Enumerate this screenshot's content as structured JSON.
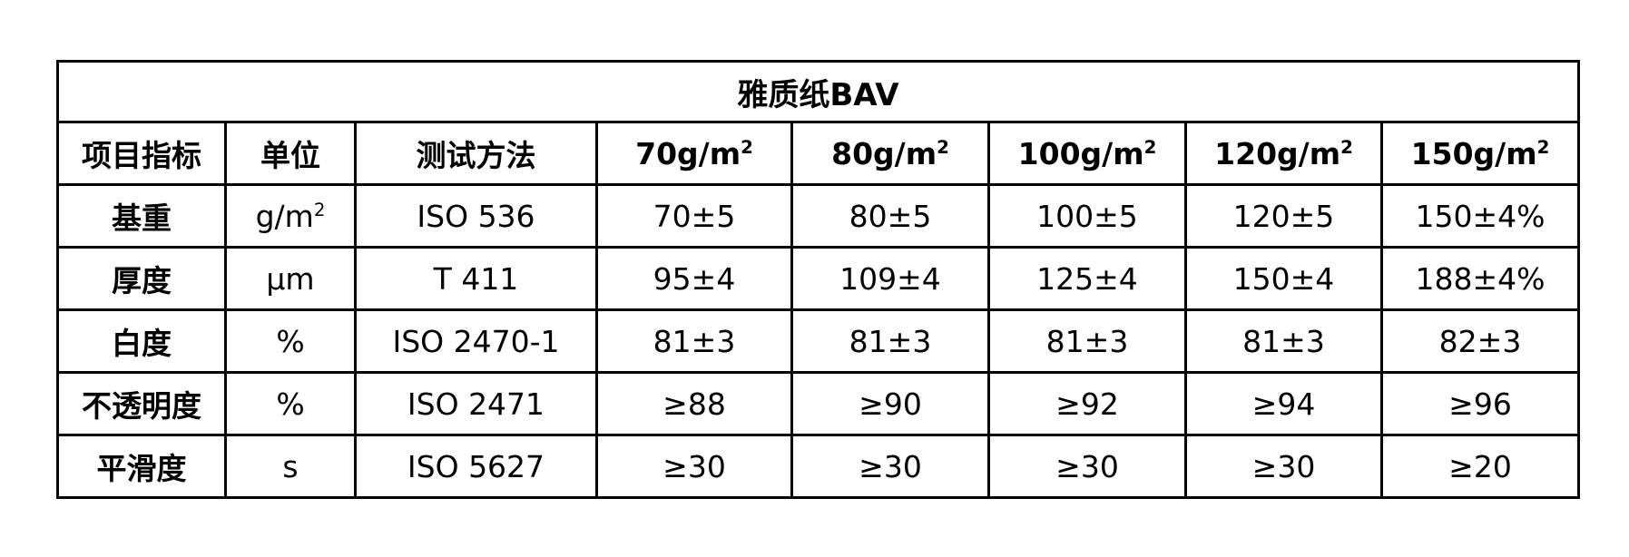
{
  "title": "雅质纸BAV",
  "headers": [
    "项目指标",
    "单位",
    "测试方法",
    "70g/m",
    "80g/m",
    "100g/m",
    "120g/m",
    "150g/m"
  ],
  "header_sup": "2",
  "rows": [
    {
      "item": "基重",
      "unit": "g/m",
      "unit_sup": "2",
      "method": "ISO 536",
      "values": [
        "70±5",
        "80±5",
        "100±5",
        "120±5",
        "150±4%"
      ]
    },
    {
      "item": "厚度",
      "unit": "μm",
      "unit_sup": "",
      "method": "T 411",
      "values": [
        "95±4",
        "109±4",
        "125±4",
        "150±4",
        "188±4%"
      ]
    },
    {
      "item": "白度",
      "unit": "%",
      "unit_sup": "",
      "method": "ISO 2470-1",
      "values": [
        "81±3",
        "81±3",
        "81±3",
        "81±3",
        "82±3"
      ]
    },
    {
      "item": "不透明度",
      "unit": "%",
      "unit_sup": "",
      "method": "ISO 2471",
      "values": [
        "≥88",
        "≥90",
        "≥92",
        "≥94",
        "≥96"
      ]
    },
    {
      "item": "平滑度",
      "unit": "s",
      "unit_sup": "",
      "method": "ISO 5627",
      "values": [
        "≥30",
        "≥30",
        "≥30",
        "≥30",
        "≥20"
      ]
    }
  ]
}
